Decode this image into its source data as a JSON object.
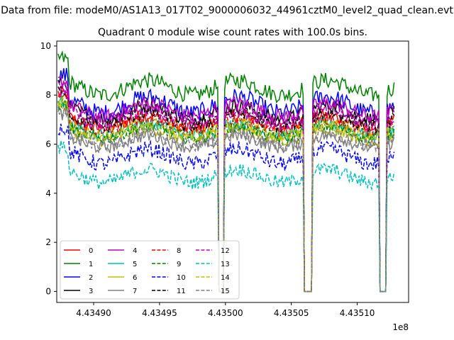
{
  "chart_data": {
    "type": "line",
    "suptitle": "Data from file: modeM0/AS1A13_017T02_9000006032_44961cztM0_level2_quad_clean.evt",
    "title": "Quadrant 0 module wise count rates with 100.0s bins.",
    "xlabel": "",
    "ylabel": "",
    "x_offset_label": "1e8",
    "xlim": [
      4.434872,
      4.435139
    ],
    "ylim": [
      -0.45,
      10.2
    ],
    "xticks": [
      4.4349,
      4.43495,
      4.435,
      4.43505,
      4.4351
    ],
    "xtick_labels": [
      "4.43490",
      "4.43495",
      "4.43500",
      "4.43505",
      "4.43510"
    ],
    "yticks": [
      0,
      2,
      4,
      6,
      8,
      10
    ],
    "ytick_labels": [
      "0",
      "2",
      "4",
      "6",
      "8",
      "10"
    ],
    "x_range_data": [
      4.434873,
      4.435128
    ],
    "gaps": [
      [
        4.434995,
        4.434999
      ],
      [
        4.435059,
        4.435066
      ],
      [
        4.435117,
        4.435122
      ]
    ],
    "legend_position": "lower-left",
    "series": [
      {
        "name": "0",
        "color": "#ff0000",
        "dash": "solid",
        "level": 6.9,
        "amp": 0.45
      },
      {
        "name": "1",
        "color": "#008000",
        "dash": "solid",
        "level": 8.3,
        "amp": 0.5
      },
      {
        "name": "2",
        "color": "#0000ff",
        "dash": "solid",
        "level": 7.6,
        "amp": 0.55
      },
      {
        "name": "3",
        "color": "#000000",
        "dash": "solid",
        "level": 7.3,
        "amp": 0.45
      },
      {
        "name": "4",
        "color": "#bf00bf",
        "dash": "solid",
        "level": 7.4,
        "amp": 0.45
      },
      {
        "name": "5",
        "color": "#00bfbf",
        "dash": "solid",
        "level": 6.6,
        "amp": 0.4
      },
      {
        "name": "6",
        "color": "#bfbf00",
        "dash": "solid",
        "level": 6.4,
        "amp": 0.4
      },
      {
        "name": "7",
        "color": "#808080",
        "dash": "solid",
        "level": 6.1,
        "amp": 0.4
      },
      {
        "name": "8",
        "color": "#ff0000",
        "dash": "dashed",
        "level": 6.8,
        "amp": 0.4
      },
      {
        "name": "9",
        "color": "#008000",
        "dash": "dashed",
        "level": 6.5,
        "amp": 0.4
      },
      {
        "name": "10",
        "color": "#0000ff",
        "dash": "dashed",
        "level": 5.5,
        "amp": 0.5
      },
      {
        "name": "11",
        "color": "#000000",
        "dash": "dashed",
        "level": 7.0,
        "amp": 0.45
      },
      {
        "name": "12",
        "color": "#bf00bf",
        "dash": "dashed",
        "level": 7.1,
        "amp": 0.45
      },
      {
        "name": "13",
        "color": "#00bfbf",
        "dash": "dashed",
        "level": 4.7,
        "amp": 0.45
      },
      {
        "name": "14",
        "color": "#bfbf00",
        "dash": "dashed",
        "level": 6.6,
        "amp": 0.4
      },
      {
        "name": "15",
        "color": "#808080",
        "dash": "dashed",
        "level": 6.2,
        "amp": 0.4
      }
    ]
  }
}
